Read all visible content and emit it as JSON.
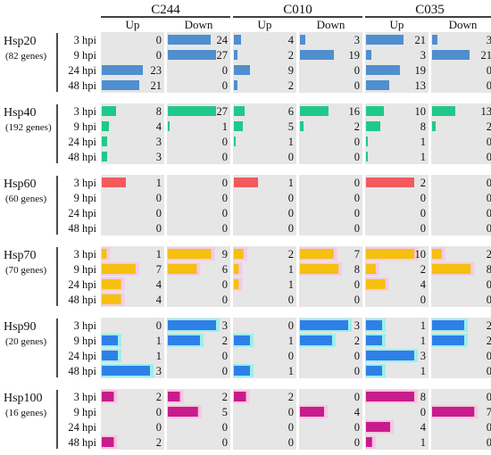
{
  "chart_data": {
    "type": "bar",
    "strains": [
      "C244",
      "C010",
      "C035"
    ],
    "directions": [
      "Up",
      "Down"
    ],
    "timepoints": [
      "3 hpi",
      "9 hpi",
      "24 hpi",
      "48 hpi"
    ],
    "groups": [
      {
        "name": "Hsp20",
        "genes": "(82 genes)",
        "max": 27,
        "color": "#4f8fcf",
        "highlight": "",
        "values": {
          "C244": {
            "Up": [
              0,
              0,
              23,
              21
            ],
            "Down": [
              24,
              27,
              0,
              0
            ]
          },
          "C010": {
            "Up": [
              4,
              2,
              9,
              2
            ],
            "Down": [
              3,
              19,
              0,
              0
            ]
          },
          "C035": {
            "Up": [
              21,
              3,
              19,
              13
            ],
            "Down": [
              3,
              21,
              0,
              0
            ]
          }
        }
      },
      {
        "name": "Hsp40",
        "genes": "(192 genes)",
        "max": 27,
        "color": "#1fc98a",
        "highlight": "",
        "values": {
          "C244": {
            "Up": [
              8,
              4,
              3,
              3
            ],
            "Down": [
              27,
              1,
              0,
              0
            ]
          },
          "C010": {
            "Up": [
              6,
              5,
              1,
              0
            ],
            "Down": [
              16,
              2,
              0,
              0
            ]
          },
          "C035": {
            "Up": [
              10,
              8,
              1,
              1
            ],
            "Down": [
              13,
              2,
              0,
              0
            ]
          }
        }
      },
      {
        "name": "Hsp60",
        "genes": "(60 genes)",
        "max": 2,
        "color": "#f25a5e",
        "highlight": "",
        "values": {
          "C244": {
            "Up": [
              1,
              0,
              0,
              0
            ],
            "Down": [
              0,
              0,
              0,
              0
            ]
          },
          "C010": {
            "Up": [
              1,
              0,
              0,
              0
            ],
            "Down": [
              0,
              0,
              0,
              0
            ]
          },
          "C035": {
            "Up": [
              2,
              0,
              0,
              0
            ],
            "Down": [
              0,
              0,
              0,
              0
            ]
          }
        }
      },
      {
        "name": "Hsp70",
        "genes": "(70 genes)",
        "max": 10,
        "color": "#f5c00e",
        "highlight": "#f7c6e4",
        "values": {
          "C244": {
            "Up": [
              1,
              7,
              4,
              4
            ],
            "Down": [
              9,
              6,
              0,
              0
            ]
          },
          "C010": {
            "Up": [
              2,
              1,
              1,
              0
            ],
            "Down": [
              7,
              8,
              0,
              0
            ]
          },
          "C035": {
            "Up": [
              10,
              2,
              4,
              0
            ],
            "Down": [
              2,
              8,
              0,
              0
            ]
          }
        }
      },
      {
        "name": "Hsp90",
        "genes": "(20 genes)",
        "max": 3,
        "color": "#2e80e8",
        "highlight": "#8ef0ec",
        "values": {
          "C244": {
            "Up": [
              0,
              1,
              1,
              3
            ],
            "Down": [
              3,
              2,
              0,
              0
            ]
          },
          "C010": {
            "Up": [
              0,
              1,
              0,
              1
            ],
            "Down": [
              3,
              2,
              0,
              0
            ]
          },
          "C035": {
            "Up": [
              1,
              1,
              3,
              1
            ],
            "Down": [
              2,
              2,
              0,
              0
            ]
          }
        }
      },
      {
        "name": "Hsp100",
        "genes": "(16 genes)",
        "max": 8,
        "color": "#c81c8c",
        "highlight": "#f9c0dc",
        "values": {
          "C244": {
            "Up": [
              2,
              0,
              0,
              2
            ],
            "Down": [
              2,
              5,
              0,
              0
            ]
          },
          "C010": {
            "Up": [
              2,
              0,
              0,
              0
            ],
            "Down": [
              0,
              4,
              0,
              0
            ]
          },
          "C035": {
            "Up": [
              8,
              0,
              4,
              1
            ],
            "Down": [
              0,
              7,
              0,
              0
            ]
          }
        }
      }
    ]
  }
}
